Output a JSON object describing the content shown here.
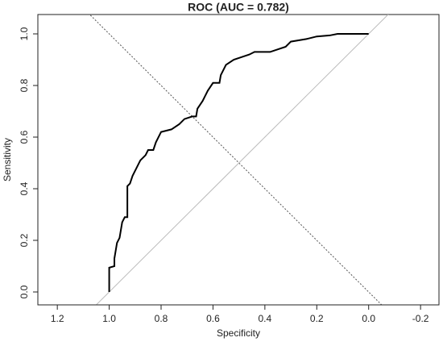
{
  "chart_data": {
    "type": "line",
    "title": "ROC (AUC = 0.782)",
    "x_label": "Specificity",
    "y_label": "Sensitivity",
    "x": [
      1.0,
      1.0,
      0.98,
      0.98,
      0.97,
      0.96,
      0.955,
      0.95,
      0.94,
      0.93,
      0.93,
      0.92,
      0.91,
      0.895,
      0.88,
      0.86,
      0.85,
      0.83,
      0.82,
      0.8,
      0.76,
      0.73,
      0.71,
      0.68,
      0.665,
      0.66,
      0.64,
      0.62,
      0.6,
      0.575,
      0.57,
      0.55,
      0.52,
      0.49,
      0.46,
      0.44,
      0.38,
      0.35,
      0.32,
      0.3,
      0.24,
      0.2,
      0.15,
      0.12,
      0.0
    ],
    "series": [
      {
        "name": "ROC",
        "color": "#000000",
        "values": [
          0.0,
          0.094,
          0.1,
          0.13,
          0.19,
          0.21,
          0.24,
          0.27,
          0.29,
          0.29,
          0.41,
          0.42,
          0.45,
          0.48,
          0.51,
          0.53,
          0.55,
          0.55,
          0.58,
          0.62,
          0.63,
          0.65,
          0.67,
          0.68,
          0.68,
          0.71,
          0.74,
          0.78,
          0.81,
          0.81,
          0.84,
          0.88,
          0.9,
          0.91,
          0.92,
          0.93,
          0.93,
          0.94,
          0.95,
          0.97,
          0.98,
          0.99,
          0.994,
          1.0,
          1.0
        ]
      }
    ],
    "xlim": [
      1.275,
      -0.271
    ],
    "ylim": [
      -0.05,
      1.075
    ],
    "xticks": [
      1.2,
      {
        "value": 1,
        "label": "1.0"
      },
      0.8,
      0.6,
      0.4,
      0.2,
      {
        "value": 0,
        "label": "0.0"
      },
      -0.2
    ],
    "yticks": [
      {
        "value": 0,
        "label": "0.0"
      },
      0.2,
      0.4,
      0.6,
      0.8,
      {
        "value": 1,
        "label": "1.0"
      }
    ],
    "grid": false
  }
}
